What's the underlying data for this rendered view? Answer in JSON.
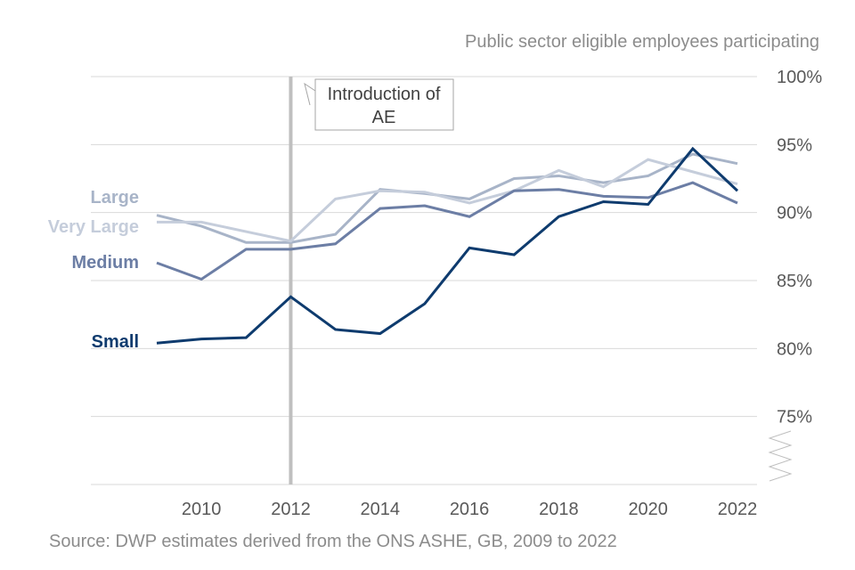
{
  "chart_data": {
    "type": "line",
    "title": "Public sector eligible employees participating",
    "source": "Source: DWP estimates derived from the ONS ASHE, GB, 2009 to 2022",
    "x": [
      2009,
      2010,
      2011,
      2012,
      2013,
      2014,
      2015,
      2016,
      2017,
      2018,
      2019,
      2020,
      2021,
      2022
    ],
    "x_ticks": [
      "2010",
      "2012",
      "2014",
      "2016",
      "2018",
      "2020",
      "2022"
    ],
    "y_ticks": [
      "75%",
      "80%",
      "85%",
      "90%",
      "95%",
      "100%"
    ],
    "ylim": [
      70,
      100
    ],
    "y_axis_break": true,
    "grid": true,
    "annotation": {
      "x": 2012,
      "line1": "Introduction of",
      "line2": "AE"
    },
    "series": [
      {
        "name": "Large",
        "color": "#a8b4c8",
        "values": [
          89.8,
          89.0,
          87.8,
          87.8,
          88.4,
          91.7,
          91.4,
          91.0,
          92.5,
          92.7,
          92.2,
          92.7,
          94.3,
          93.6
        ]
      },
      {
        "name": "Very Large",
        "color": "#c5cddb",
        "values": [
          89.3,
          89.3,
          88.6,
          87.9,
          91.0,
          91.6,
          91.5,
          90.7,
          91.6,
          93.1,
          91.9,
          93.9,
          93.0,
          92.1
        ]
      },
      {
        "name": "Medium",
        "color": "#6c7ea5",
        "values": [
          86.3,
          85.1,
          87.3,
          87.3,
          87.7,
          90.3,
          90.5,
          89.7,
          91.6,
          91.7,
          91.2,
          91.1,
          92.2,
          90.7
        ]
      },
      {
        "name": "Small",
        "color": "#0e3b6e",
        "values": [
          80.4,
          80.7,
          80.8,
          83.8,
          81.4,
          81.1,
          83.3,
          87.4,
          86.9,
          89.7,
          90.8,
          90.6,
          94.7,
          91.6
        ]
      }
    ]
  }
}
